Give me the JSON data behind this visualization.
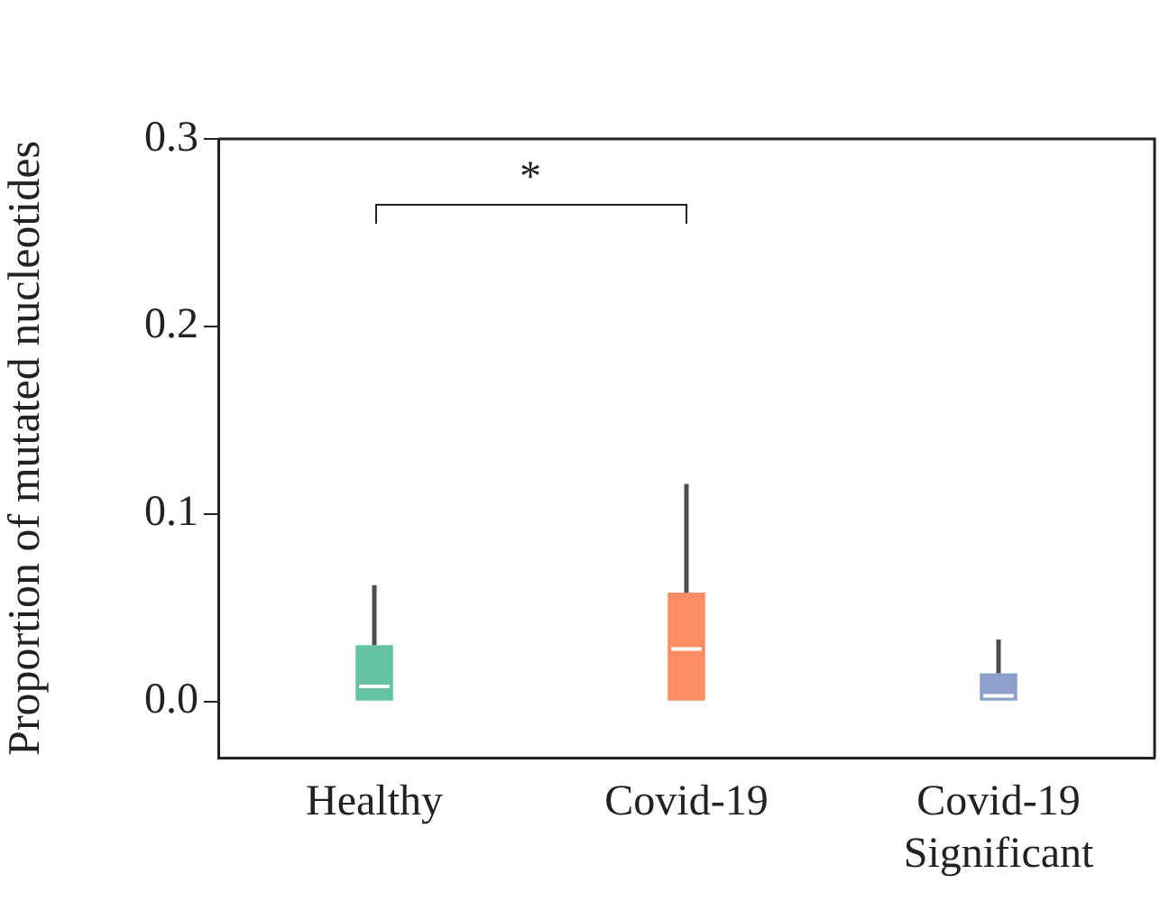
{
  "chart_data": {
    "type": "box",
    "ylabel": "Proportion of mutated nucleotides",
    "categories": [
      "Healthy",
      "Covid-19",
      "Covid-19 Significant"
    ],
    "colors": [
      "#66c2a5",
      "#fc8d62",
      "#8da0cb"
    ],
    "boxes": [
      {
        "low": 0.0,
        "q1": 0.0,
        "median": 0.008,
        "q3": 0.03,
        "high": 0.062
      },
      {
        "low": 0.0,
        "q1": 0.0,
        "median": 0.028,
        "q3": 0.058,
        "high": 0.116
      },
      {
        "low": 0.0,
        "q1": 0.0,
        "median": 0.003,
        "q3": 0.015,
        "high": 0.033
      }
    ],
    "ylim": [
      -0.03,
      0.3
    ],
    "yticks": [
      {
        "value": 0,
        "label": "0.0"
      },
      {
        "value": 0.1,
        "label": "0.1"
      },
      {
        "value": 0.2,
        "label": "0.2"
      },
      {
        "value": 0.3,
        "label": "0.3"
      }
    ],
    "grid": false,
    "legend": false,
    "annotations": [
      "*"
    ]
  }
}
